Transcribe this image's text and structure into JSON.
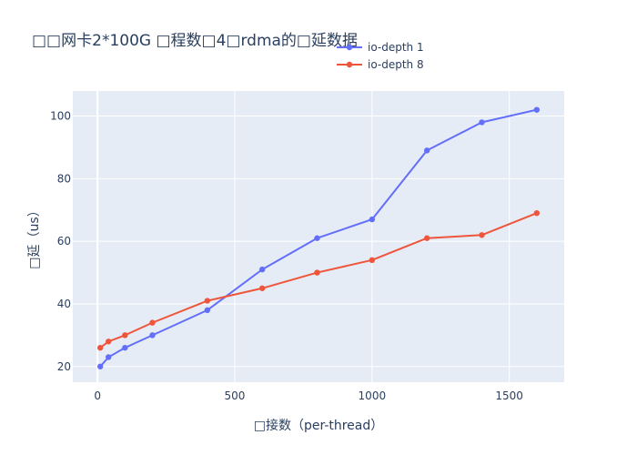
{
  "chart_data": {
    "type": "line",
    "title": "□□网卡2*100G □程数□4□rdma的□延数据",
    "xlabel": "□接数（per-thread）",
    "ylabel": "□延（us）",
    "xlim": [
      -90,
      1700
    ],
    "ylim": [
      15,
      108
    ],
    "x_ticks": [
      0,
      500,
      1000,
      1500
    ],
    "y_ticks": [
      20,
      40,
      60,
      80,
      100
    ],
    "grid": true,
    "legend_position": "top-center",
    "series": [
      {
        "name": "io-depth 1",
        "color": "#636efa",
        "x": [
          10,
          40,
          100,
          200,
          400,
          600,
          800,
          1000,
          1200,
          1400,
          1600
        ],
        "y": [
          20,
          23,
          26,
          30,
          38,
          51,
          61,
          67,
          89,
          98,
          102
        ]
      },
      {
        "name": "io-depth 8",
        "color": "#ef553b",
        "x": [
          10,
          40,
          100,
          200,
          400,
          600,
          800,
          1000,
          1200,
          1400,
          1600
        ],
        "y": [
          26,
          28,
          30,
          34,
          41,
          45,
          50,
          54,
          61,
          62,
          69
        ]
      }
    ]
  },
  "colors": {
    "plot_background": "#e5ecf6",
    "grid": "#ffffff",
    "text": "#2a3f5f"
  }
}
